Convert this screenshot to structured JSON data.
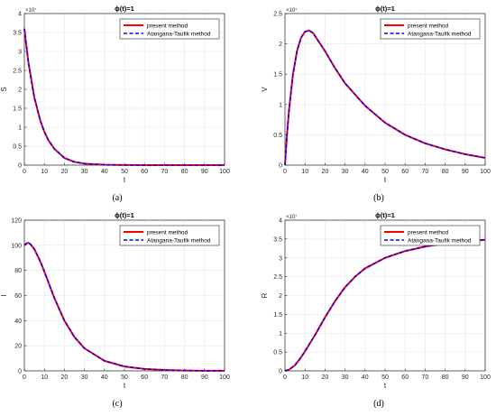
{
  "colors": {
    "present": "#ff0000",
    "atangana": "#0000ff",
    "grid": "#e6e6e6",
    "axis": "#262626"
  },
  "legend": [
    "present method",
    "Atangana-Taufik method"
  ],
  "chart_data": [
    {
      "type": "line",
      "id": "a",
      "caption": "(a)",
      "title": "ϕ(t)=1",
      "xlabel": "t",
      "ylabel": "S",
      "exponent_label": "×10⁷",
      "xlim": [
        0,
        100
      ],
      "ylim": [
        0,
        4
      ],
      "xticks": [
        "0",
        "10",
        "20",
        "30",
        "40",
        "50",
        "60",
        "70",
        "80",
        "90",
        "100"
      ],
      "yticks": [
        "0",
        "0.5",
        "1",
        "1.5",
        "2",
        "2.5",
        "3",
        "3.5",
        "4"
      ],
      "legend_position": "top-right",
      "x": [
        0,
        2,
        5,
        8,
        10,
        12,
        15,
        20,
        25,
        30,
        40,
        50,
        60,
        80,
        100
      ],
      "series": [
        {
          "name": "present method",
          "values": [
            3.6,
            2.72,
            1.78,
            1.17,
            0.88,
            0.66,
            0.43,
            0.19,
            0.085,
            0.04,
            0.01,
            0.003,
            0.001,
            0.0,
            0.0
          ]
        },
        {
          "name": "Atangana-Taufik method",
          "values": [
            3.6,
            2.72,
            1.78,
            1.17,
            0.88,
            0.66,
            0.43,
            0.19,
            0.085,
            0.04,
            0.01,
            0.003,
            0.001,
            0.0,
            0.0
          ]
        }
      ]
    },
    {
      "type": "line",
      "id": "b",
      "caption": "(b)",
      "title": "ϕ(t)=1",
      "xlabel": "t",
      "ylabel": "V",
      "exponent_label": "×10⁷",
      "xlim": [
        0,
        100
      ],
      "ylim": [
        0,
        2.5
      ],
      "xticks": [
        "0",
        "10",
        "20",
        "30",
        "40",
        "50",
        "60",
        "70",
        "80",
        "90",
        "100"
      ],
      "yticks": [
        "0",
        "0.5",
        "1",
        "1.5",
        "2",
        "2.5"
      ],
      "legend_position": "top-right",
      "x": [
        0,
        1,
        2,
        4,
        6,
        8,
        10,
        12,
        14,
        16,
        20,
        25,
        30,
        40,
        50,
        60,
        70,
        80,
        90,
        100
      ],
      "series": [
        {
          "name": "present method",
          "values": [
            0.0,
            0.5,
            0.9,
            1.5,
            1.88,
            2.1,
            2.2,
            2.22,
            2.18,
            2.08,
            1.88,
            1.6,
            1.35,
            0.98,
            0.7,
            0.5,
            0.36,
            0.26,
            0.18,
            0.12
          ]
        },
        {
          "name": "Atangana-Taufik method",
          "values": [
            0.0,
            0.5,
            0.9,
            1.5,
            1.88,
            2.1,
            2.2,
            2.22,
            2.18,
            2.08,
            1.88,
            1.6,
            1.35,
            0.98,
            0.7,
            0.5,
            0.36,
            0.26,
            0.18,
            0.12
          ]
        }
      ]
    },
    {
      "type": "line",
      "id": "c",
      "caption": "(c)",
      "title": "ϕ(t)=1",
      "xlabel": "t",
      "ylabel": "I",
      "exponent_label": "",
      "xlim": [
        0,
        100
      ],
      "ylim": [
        0,
        120
      ],
      "xticks": [
        "0",
        "10",
        "20",
        "30",
        "40",
        "50",
        "60",
        "70",
        "80",
        "90",
        "100"
      ],
      "yticks": [
        "0",
        "20",
        "40",
        "60",
        "80",
        "100",
        "120"
      ],
      "legend_position": "top-right",
      "x": [
        0,
        1,
        2,
        3,
        5,
        8,
        10,
        15,
        20,
        25,
        30,
        40,
        50,
        60,
        70,
        80,
        90,
        100
      ],
      "series": [
        {
          "name": "present method",
          "values": [
            100,
            101.5,
            102,
            101,
            97,
            87,
            79,
            58,
            40,
            27,
            18,
            8,
            3.5,
            1.5,
            0.7,
            0.3,
            0.1,
            0.05
          ]
        },
        {
          "name": "Atangana-Taufik method",
          "values": [
            100,
            101.5,
            102,
            101,
            97,
            87,
            79,
            58,
            40,
            27,
            18,
            8,
            3.5,
            1.5,
            0.7,
            0.3,
            0.1,
            0.05
          ]
        }
      ]
    },
    {
      "type": "line",
      "id": "d",
      "caption": "(d)",
      "title": "ϕ(t)=1",
      "xlabel": "t",
      "ylabel": "R",
      "exponent_label": "×10⁷",
      "xlim": [
        0,
        100
      ],
      "ylim": [
        0,
        4
      ],
      "xticks": [
        "0",
        "10",
        "20",
        "30",
        "40",
        "50",
        "60",
        "70",
        "80",
        "90",
        "100"
      ],
      "yticks": [
        "0",
        "0.5",
        "1",
        "1.5",
        "2",
        "2.5",
        "3",
        "3.5",
        "4"
      ],
      "legend_position": "top-right",
      "x": [
        0,
        2,
        5,
        8,
        10,
        15,
        20,
        25,
        30,
        35,
        40,
        50,
        60,
        70,
        80,
        90,
        100
      ],
      "series": [
        {
          "name": "present method",
          "values": [
            0.0,
            0.03,
            0.15,
            0.36,
            0.52,
            0.95,
            1.42,
            1.85,
            2.22,
            2.5,
            2.72,
            3.0,
            3.18,
            3.3,
            3.38,
            3.44,
            3.48
          ]
        },
        {
          "name": "Atangana-Taufik method",
          "values": [
            0.0,
            0.03,
            0.15,
            0.36,
            0.52,
            0.95,
            1.42,
            1.85,
            2.22,
            2.5,
            2.72,
            3.0,
            3.18,
            3.3,
            3.38,
            3.44,
            3.48
          ]
        }
      ]
    }
  ]
}
